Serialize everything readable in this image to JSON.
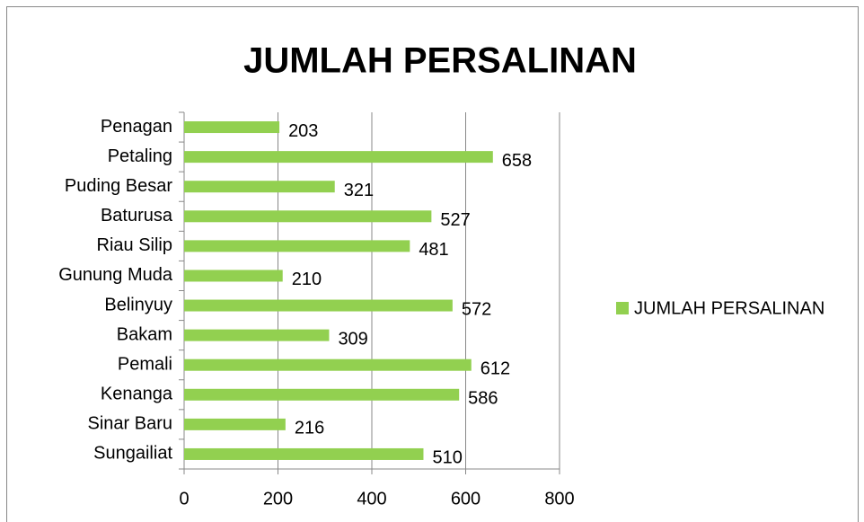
{
  "chart_data": {
    "type": "bar",
    "orientation": "horizontal",
    "title": "JUMLAH PERSALINAN",
    "categories": [
      "Penagan",
      "Petaling",
      "Puding Besar",
      "Baturusa",
      "Riau Silip",
      "Gunung Muda",
      "Belinyuy",
      "Bakam",
      "Pemali",
      "Kenanga",
      "Sinar Baru",
      "Sungailiat"
    ],
    "series": [
      {
        "name": "JUMLAH PERSALINAN",
        "color": "#92d050",
        "values": [
          203,
          658,
          321,
          527,
          481,
          210,
          572,
          309,
          612,
          586,
          216,
          510
        ]
      }
    ],
    "xlim": [
      0,
      800
    ],
    "xticks": [
      0,
      200,
      400,
      600,
      800
    ],
    "grid": true,
    "legend": "right"
  }
}
